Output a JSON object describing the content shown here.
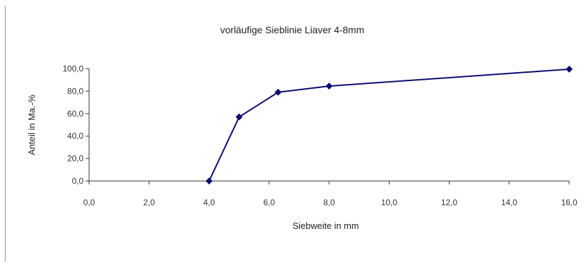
{
  "chart_data": {
    "type": "line",
    "title": "vorläufige Sieblinie Liaver 4-8mm",
    "xlabel": "Siebweite in mm",
    "ylabel": "Anteil in Ma.-%",
    "xlim": [
      0,
      16
    ],
    "ylim": [
      0,
      100
    ],
    "x_ticks": [
      "0,0",
      "2,0",
      "4,0",
      "6,0",
      "8,0",
      "10,0",
      "12,0",
      "14,0",
      "16,0"
    ],
    "y_ticks": [
      "0,0",
      "20,0",
      "40,0",
      "60,0",
      "80,0",
      "100,0"
    ],
    "series": [
      {
        "x": [
          4.0,
          5.0,
          6.3,
          8.0,
          16.0
        ],
        "y": [
          0.0,
          57.0,
          79.0,
          84.5,
          99.5
        ]
      }
    ],
    "line_color": "#0b0b6e",
    "grid": false,
    "legend": "none"
  }
}
